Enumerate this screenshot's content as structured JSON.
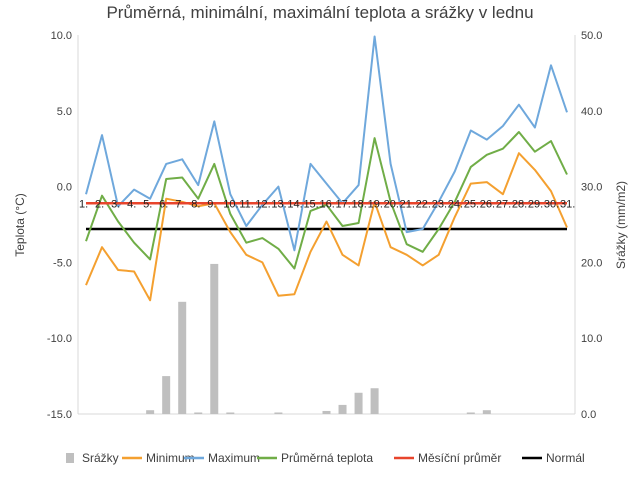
{
  "chart_data": {
    "type": "combo",
    "title": "Průměrná, minimální, maximální teplota a srážky v lednu",
    "ylabel": "Teplota (°C)",
    "y2label": "Srážky (mm/m2)",
    "ylim": [
      -15,
      10
    ],
    "y2lim": [
      0,
      50
    ],
    "yticks": [
      "-15.0",
      "-10.0",
      "-5.0",
      "0.0",
      "5.0",
      "10.0"
    ],
    "y2ticks": [
      "0.0",
      "10.0",
      "20.0",
      "30.0",
      "40.0",
      "50.0"
    ],
    "categories": [
      "1.",
      "2.",
      "3.",
      "4.",
      "5.",
      "6.",
      "7.",
      "8.",
      "9.",
      "10.",
      "11.",
      "12.",
      "13.",
      "14.",
      "15.",
      "16.",
      "17.",
      "18.",
      "19.",
      "20.",
      "21.",
      "22.",
      "23.",
      "24.",
      "25.",
      "26.",
      "27.",
      "28.",
      "29.",
      "30.",
      "31."
    ],
    "series": [
      {
        "name": "Srážky",
        "type": "bar",
        "axis": "y2",
        "color": "#bfbfbf",
        "values": [
          0,
          0,
          0,
          0,
          0.5,
          5,
          14.8,
          0.2,
          19.8,
          0.2,
          0,
          0,
          0.2,
          0,
          0,
          0.4,
          1.2,
          2.8,
          3.4,
          0,
          0,
          0,
          0,
          0,
          0.2,
          0.5,
          0,
          0,
          0,
          0,
          0
        ]
      },
      {
        "name": "Minimum",
        "type": "line",
        "axis": "y",
        "color": "#f4a030",
        "values": [
          -6.5,
          -4,
          -5.5,
          -5.6,
          -7.5,
          -0.8,
          -1,
          -1.3,
          -1.1,
          -3,
          -4.5,
          -5,
          -7.2,
          -7.1,
          -4.3,
          -2.3,
          -4.5,
          -5.2,
          -1,
          -4,
          -4.5,
          -5.2,
          -4.5,
          -2,
          0.2,
          0.3,
          -0.5,
          2.2,
          1.1,
          -0.3,
          -2.7
        ]
      },
      {
        "name": "Maximum",
        "type": "line",
        "axis": "y",
        "color": "#6fa8dc",
        "values": [
          -0.5,
          3.4,
          -1.3,
          -0.2,
          -0.8,
          1.5,
          1.8,
          0.1,
          4.3,
          -0.5,
          -2.6,
          -1.2,
          0,
          -4.2,
          1.5,
          0.2,
          -1.1,
          0.1,
          9.9,
          1.5,
          -3,
          -2.8,
          -1,
          1,
          3.7,
          3.1,
          4,
          5.4,
          3.9,
          8,
          4.9
        ]
      },
      {
        "name": "Průměrná teplota",
        "type": "line",
        "axis": "y",
        "color": "#70ad47",
        "values": [
          -3.6,
          -0.6,
          -2.3,
          -3.7,
          -4.8,
          0.5,
          0.6,
          -0.8,
          1.5,
          -1.8,
          -3.7,
          -3.4,
          -4.1,
          -5.4,
          -1.6,
          -1.2,
          -2.6,
          -2.4,
          3.2,
          -1,
          -3.8,
          -4.3,
          -2.8,
          -1,
          1.3,
          2.1,
          2.5,
          3.6,
          2.3,
          3,
          0.8
        ]
      },
      {
        "name": "Měsíční průměr",
        "type": "line",
        "axis": "y",
        "color": "#e8452c",
        "values": [
          -1.1,
          -1.1,
          -1.1,
          -1.1,
          -1.1,
          -1.1,
          -1.1,
          -1.1,
          -1.1,
          -1.1,
          -1.1,
          -1.1,
          -1.1,
          -1.1,
          -1.1,
          -1.1,
          -1.1,
          -1.1,
          -1.1,
          -1.1,
          -1.1,
          -1.1,
          -1.1,
          -1.1,
          -1.1,
          -1.1,
          -1.1,
          -1.1,
          -1.1,
          -1.1,
          -1.1
        ]
      },
      {
        "name": "Normál",
        "type": "line",
        "axis": "y",
        "color": "#000000",
        "values": [
          -2.8,
          -2.8,
          -2.8,
          -2.8,
          -2.8,
          -2.8,
          -2.8,
          -2.8,
          -2.8,
          -2.8,
          -2.8,
          -2.8,
          -2.8,
          -2.8,
          -2.8,
          -2.8,
          -2.8,
          -2.8,
          -2.8,
          -2.8,
          -2.8,
          -2.8,
          -2.8,
          -2.8,
          -2.8,
          -2.8,
          -2.8,
          -2.8,
          -2.8,
          -2.8,
          -2.8
        ]
      }
    ],
    "legend": [
      "Srážky",
      "Minimum",
      "Maximum",
      "Průměrná teplota",
      "Měsíční průměr",
      "Normál"
    ],
    "legend_position": "bottom",
    "grid": false
  }
}
